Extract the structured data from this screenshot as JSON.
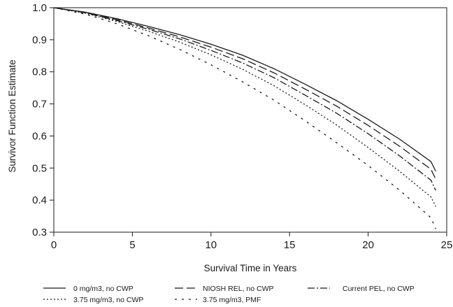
{
  "chart_data": {
    "type": "line",
    "title": "",
    "xlabel": "Survival Time in Years",
    "ylabel": "Survivor Function Estimate",
    "xlim": [
      0,
      25
    ],
    "ylim": [
      0.3,
      1.0
    ],
    "x_ticks": [
      "0",
      "5",
      "10",
      "15",
      "20",
      "25"
    ],
    "y_ticks": [
      "0.3",
      "0.4",
      "0.5",
      "0.6",
      "0.7",
      "0.8",
      "0.9",
      "1.0"
    ],
    "grid": false,
    "legend_position": "bottom",
    "x": [
      0,
      2,
      4,
      6,
      8,
      10,
      12,
      14,
      16,
      18,
      20,
      22,
      24,
      24.3
    ],
    "series": [
      {
        "name": "0 mg/m3, no CWP",
        "style": "solid",
        "color": "#1a1a1a",
        "values": [
          1.0,
          0.986,
          0.966,
          0.942,
          0.916,
          0.886,
          0.852,
          0.81,
          0.761,
          0.71,
          0.652,
          0.59,
          0.52,
          0.49
        ]
      },
      {
        "name": "NIOSH REL, no CWP",
        "style": "long-dash",
        "color": "#1a1a1a",
        "values": [
          1.0,
          0.985,
          0.963,
          0.937,
          0.909,
          0.877,
          0.841,
          0.797,
          0.746,
          0.693,
          0.633,
          0.568,
          0.496,
          0.465
        ]
      },
      {
        "name": "Current PEL, no CWP",
        "style": "dash-dot",
        "color": "#1a1a1a",
        "values": [
          1.0,
          0.984,
          0.96,
          0.933,
          0.903,
          0.867,
          0.828,
          0.782,
          0.727,
          0.671,
          0.607,
          0.538,
          0.462,
          0.43
        ]
      },
      {
        "name": "3.75 mg/m3, no CWP",
        "style": "dotted",
        "color": "#1a1a1a",
        "values": [
          1.0,
          0.983,
          0.957,
          0.927,
          0.893,
          0.853,
          0.808,
          0.757,
          0.697,
          0.634,
          0.564,
          0.49,
          0.41,
          0.38
        ]
      },
      {
        "name": "3.75 mg/m3, PMF",
        "style": "sparse-dash",
        "color": "#1a1a1a",
        "values": [
          1.0,
          0.98,
          0.95,
          0.913,
          0.87,
          0.822,
          0.769,
          0.712,
          0.647,
          0.579,
          0.508,
          0.431,
          0.345,
          0.31
        ]
      }
    ]
  }
}
